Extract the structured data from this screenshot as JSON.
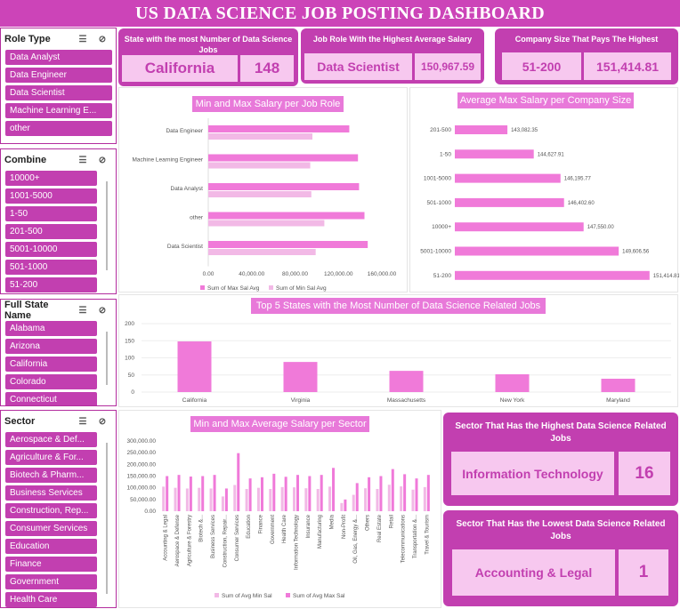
{
  "header": {
    "title": "US DATA SCIENCE JOB POSTING DASHBOARD"
  },
  "colors": {
    "primary": "#c23fb0",
    "light": "#f7c8ef",
    "bar_dark": "#f07ad9",
    "bar_light": "#f2b9e6"
  },
  "slicers": {
    "role": {
      "title": "Role Type",
      "items": [
        "Data Analyst",
        "Data Engineer",
        "Data Scientist",
        "Machine Learning E...",
        "other"
      ]
    },
    "combine": {
      "title": "Combine",
      "items": [
        "10000+",
        "1001-5000",
        "1-50",
        "201-500",
        "5001-10000",
        "501-1000",
        "51-200"
      ]
    },
    "state": {
      "title": "Full State Name",
      "items": [
        "Alabama",
        "Arizona",
        "California",
        "Colorado",
        "Connecticut"
      ]
    },
    "sector": {
      "title": "Sector",
      "items": [
        "Aerospace & Def...",
        "Agriculture & For...",
        "Biotech & Pharm...",
        "Business Services",
        "Construction, Rep...",
        "Consumer Services",
        "Education",
        "Finance",
        "Government",
        "Health Care"
      ]
    },
    "icons": {
      "multi_select": "multi-select-icon",
      "clear_filter": "clear-filter-icon"
    }
  },
  "kpis": {
    "state": {
      "label": "State with the most Number of Data Science Jobs",
      "name": "California",
      "value": "148"
    },
    "role": {
      "label": "Job Role With the Highest Average Salary",
      "name": "Data Scientist",
      "value": "150,967.59"
    },
    "company": {
      "label": "Company Size That Pays The Highest",
      "name": "51-200",
      "value": "151,414.81"
    },
    "sector_high": {
      "label": "Sector That Has the Highest Data Science Related Jobs",
      "name": "Information Technology",
      "value": "16"
    },
    "sector_low": {
      "label": "Sector That Has the Lowest Data Science Related Jobs",
      "name": "Accounting & Legal",
      "value": "1"
    }
  },
  "charts": {
    "role_title": "Min and Max Salary per Job Role",
    "company_title": "Average Max Salary per Company Size",
    "states_title": "Top 5 States with the Most Number of Data Science Related Jobs",
    "sector_title": "Min and Max Average Salary per Sector"
  },
  "chart_data": [
    {
      "type": "bar",
      "orientation": "horizontal",
      "title": "Min and Max Salary per Job Role",
      "categories": [
        "Data Engineer",
        "Machine Learning Engineer",
        "Data Analyst",
        "other",
        "Data Scientist"
      ],
      "series": [
        {
          "name": "Sum of Max Sal Avg",
          "values": [
            130000,
            138000,
            139000,
            144000,
            147000
          ]
        },
        {
          "name": "Sum of Min Sal Avg",
          "values": [
            96000,
            94000,
            95000,
            107000,
            99000
          ]
        }
      ],
      "x_ticks": [
        "0.00",
        "40,000.00",
        "80,000.00",
        "120,000.00",
        "160,000.00"
      ],
      "xlim": [
        0,
        160000
      ]
    },
    {
      "type": "bar",
      "orientation": "horizontal",
      "title": "Average Max Salary per Company Size",
      "categories": [
        "201-500",
        "1-50",
        "1001-5000",
        "501-1000",
        "10000+",
        "5001-10000",
        "51-200"
      ],
      "values": [
        143082.35,
        144627.91,
        146195.77,
        146402.6,
        147550.0,
        149606.56,
        151414.81
      ],
      "labels": [
        "143,082.35",
        "144,627.91",
        "146,195.77",
        "146,402.60",
        "147,550.00",
        "149,606.56",
        "151,414.81"
      ],
      "xlim": [
        140000,
        152000
      ]
    },
    {
      "type": "bar",
      "title": "Top 5 States with the Most Number of Data Science Related Jobs",
      "categories": [
        "California",
        "Virginia",
        "Massachusetts",
        "New York",
        "Maryland"
      ],
      "values": [
        148,
        88,
        62,
        52,
        39
      ],
      "y_ticks": [
        "0",
        "50",
        "100",
        "150",
        "200"
      ],
      "ylim": [
        0,
        200
      ]
    },
    {
      "type": "bar",
      "title": "Min and Max Average Salary per Sector",
      "categories": [
        "Accounting & Legal",
        "Aerospace & Defense",
        "Agriculture & Forestry",
        "Biotech &...",
        "Business Services",
        "Construction, Repair...",
        "Consumer Services",
        "Education",
        "Finance",
        "Government",
        "Health Care",
        "Information Technology",
        "Insurance",
        "Manufacturing",
        "Media",
        "Non-Profit",
        "Oil, Gas, Energy &...",
        "Others",
        "Real Estate",
        "Retail",
        "Telecommunications",
        "Transportation &...",
        "Travel & Tourism"
      ],
      "series": [
        {
          "name": "Sum of Avg Min Sal",
          "values": [
            105000,
            100000,
            97000,
            100000,
            97000,
            63000,
            112000,
            95000,
            100000,
            95000,
            103000,
            102000,
            98000,
            95000,
            105000,
            35000,
            70000,
            98000,
            95000,
            113000,
            106000,
            92000,
            103000
          ]
        },
        {
          "name": "Sum of Avg Max Sal",
          "values": [
            150000,
            155000,
            148000,
            150000,
            155000,
            97000,
            248000,
            140000,
            145000,
            160000,
            147000,
            155000,
            150000,
            155000,
            185000,
            50000,
            120000,
            145000,
            150000,
            180000,
            158000,
            140000,
            155000
          ]
        }
      ],
      "y_ticks": [
        "300,000.00",
        "250,000.00",
        "200,000.00",
        "150,000.00",
        "100,000.00",
        "50,000.00",
        "0.00"
      ],
      "ylim": [
        0,
        300000
      ]
    }
  ]
}
